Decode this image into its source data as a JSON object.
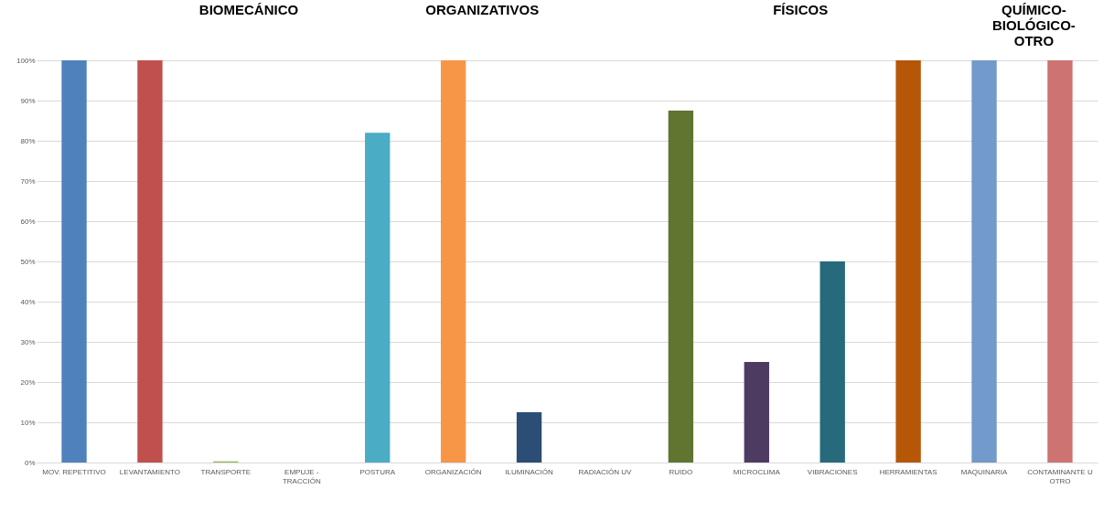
{
  "chart_data": {
    "type": "bar",
    "categories": [
      "MOV. REPETITIVO",
      "LEVANTAMIENTO",
      "TRANSPORTE",
      "EMPUJE - TRACCIÓN",
      "POSTURA",
      "ORGANIZACIÓN",
      "ILUMINACIÓN",
      "RADIACIÓN UV",
      "RUIDO",
      "MICROCLIMA",
      "VIBRACIONES",
      "HERRAMIENTAS",
      "MAQUINARIA",
      "CONTAMINANTE U OTRO"
    ],
    "values": [
      100,
      100,
      0.3,
      0,
      82,
      100,
      12.5,
      0,
      87.5,
      25,
      50,
      100,
      100,
      100
    ],
    "colors": [
      "#4f81bd",
      "#c0504d",
      "#9bbb59",
      "#8064a2",
      "#4bacc6",
      "#f79646",
      "#2c4d75",
      "#772c2a",
      "#5f7530",
      "#4d3b62",
      "#276a7c",
      "#b65708",
      "#729aca",
      "#cd7371"
    ],
    "ylim": [
      0,
      100
    ],
    "yticks": [
      {
        "value": 0,
        "label": "0%"
      },
      {
        "value": 10,
        "label": "10%"
      },
      {
        "value": 20,
        "label": "20%"
      },
      {
        "value": 30,
        "label": "30%"
      },
      {
        "value": 40,
        "label": "40%"
      },
      {
        "value": 50,
        "label": "50%"
      },
      {
        "value": 60,
        "label": "60%"
      },
      {
        "value": 70,
        "label": "70%"
      },
      {
        "value": 80,
        "label": "80%"
      },
      {
        "value": 90,
        "label": "90%"
      },
      {
        "value": 100,
        "label": "100%"
      }
    ],
    "grid": "y",
    "annotations": [
      "BIOMECÁNICO",
      "ORGANIZATIVOS",
      "FÍSICOS",
      "QUÍMICO-BIOLÓGICO-OTRO"
    ]
  }
}
